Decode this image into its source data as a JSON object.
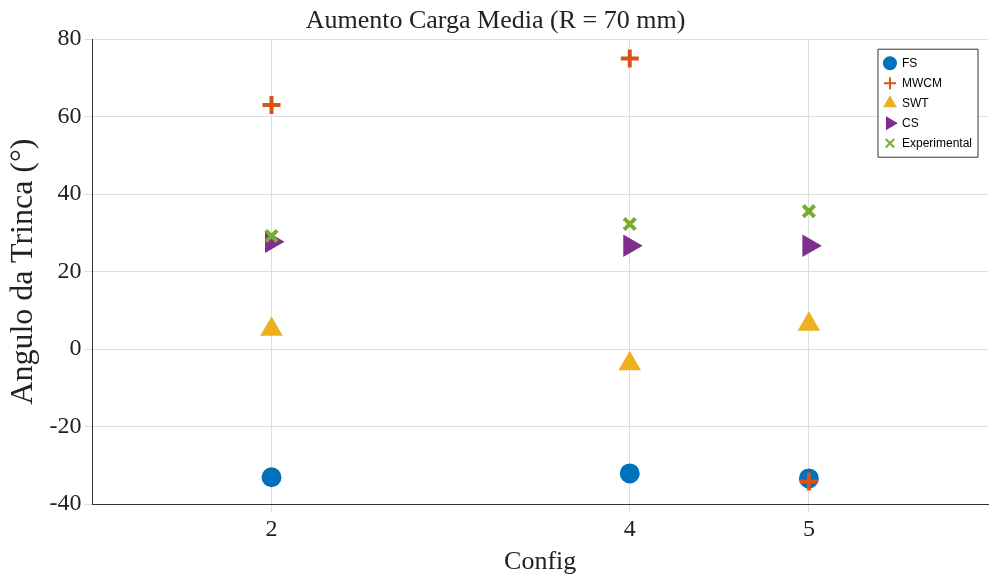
{
  "chart_data": {
    "type": "scatter",
    "title": "Aumento Carga Media (R = 70 mm)",
    "xlabel": "Config",
    "ylabel": "Angulo da Trinca (°)",
    "x": [
      2,
      4,
      5
    ],
    "xlim": [
      1,
      6
    ],
    "xticks": [
      2,
      4,
      5
    ],
    "ylim": [
      -40,
      80
    ],
    "yticks": [
      -40,
      -20,
      0,
      20,
      40,
      60,
      80
    ],
    "grid": true,
    "legend": "top right",
    "series": [
      {
        "name": "FS",
        "color": "#0072bd",
        "marker": "circle",
        "values": [
          -33.1,
          -32.1,
          -33.4
        ]
      },
      {
        "name": "MWCM",
        "color": "#d95319",
        "marker": "cross",
        "values": [
          63,
          75,
          -34.2
        ]
      },
      {
        "name": "SWT",
        "color": "#edb120",
        "marker": "triangle",
        "values": [
          5.1,
          -3.8,
          6.4
        ]
      },
      {
        "name": "CS",
        "color": "#7e2f8e",
        "marker": "triangle-right",
        "values": [
          27.7,
          26.7,
          26.7
        ]
      },
      {
        "name": "Experimental",
        "color": "#77ac30",
        "marker": "x",
        "values": [
          29.2,
          32.3,
          35.6
        ]
      }
    ]
  }
}
